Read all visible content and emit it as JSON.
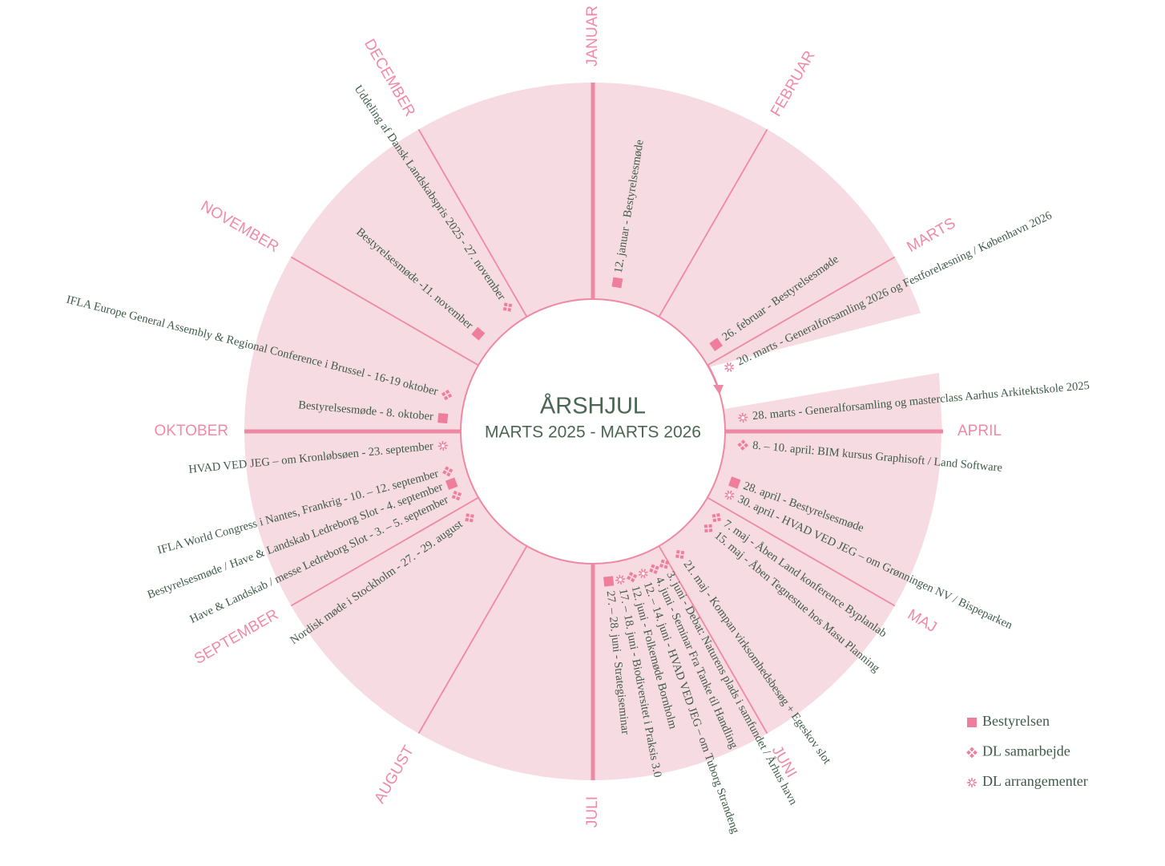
{
  "title": "ÅRSHJUL",
  "subtitle": "MARTS 2025 - MARTS 2026",
  "months": [
    "JANUAR",
    "FEBRUAR",
    "MARTS",
    "APRIL",
    "MAJ",
    "JUNI",
    "JULI",
    "AUGUST",
    "SEPTEMBER",
    "OKTOBER",
    "NOVEMBER",
    "DECEMBER"
  ],
  "events": [
    {
      "text": "12. januar - Bestyrelsesmøde",
      "icon": "square"
    },
    {
      "text": "26. februar - Bestyrelsesmøde",
      "icon": "square"
    },
    {
      "text": "20. marts - Generalforsamling 2026 og Festforelæsning / København 2026",
      "icon": "asterisk"
    },
    {
      "text": "28. marts - Generalforsamling og masterclass Aarhus Arkitektskole 2025",
      "icon": "asterisk"
    },
    {
      "text": "8. – 10. april: BIM kursus Graphisoft / Land Software",
      "icon": "diamonds"
    },
    {
      "text": "28. april - Bestyrelsesmøde",
      "icon": "square"
    },
    {
      "text": "30. april - HVAD VED JEG – om Grønningen NV / Bispeparken",
      "icon": "asterisk"
    },
    {
      "text": "7. maj - Åben Land konference Byplanlab",
      "icon": "diamonds"
    },
    {
      "text": "15. maj - Åben Tegnestue hos Masu Planning",
      "icon": "diamonds"
    },
    {
      "text": "21. maj - Kompan virksomhedsbesøg + Egeskov slot",
      "icon": "diamonds"
    },
    {
      "text": "3. juni - Debat: Naturens plads i samfundet / Århus havn",
      "icon": "diamonds"
    },
    {
      "text": "4. juni - Seminar Fra Tanke til Handling",
      "icon": "diamonds"
    },
    {
      "text": "12. – 14. juni - HVAD VED JEG – om Tuborg Strandeng",
      "icon": "asterisk"
    },
    {
      "text": "12. juni - Folkemøde Bornholm",
      "icon": "diamonds"
    },
    {
      "text": "17. – 18. juni - Biodiversitet i Praksis 3.0",
      "icon": "asterisk"
    },
    {
      "text": "27. – 28. juni - Strategiseminar",
      "icon": "square"
    },
    {
      "text": "Nordisk møde i Stockholm - 27. - 29. august",
      "icon": "diamonds"
    },
    {
      "text": "Have & Landskab / messe Ledreborg Slot - 3. – 5. september",
      "icon": "diamonds"
    },
    {
      "text": "Bestyrelsesmøde / Have & Landskab Ledreborg Slot - 4. september",
      "icon": "square"
    },
    {
      "text": "IFLA World Congress i Nantes, Frankrig - 10. – 12. september",
      "icon": "diamonds"
    },
    {
      "text": "HVAD VED JEG – om Kronløbsøen - 23. september",
      "icon": "asterisk"
    },
    {
      "text": "Bestyrelsesmøde - 8. oktober",
      "icon": "square"
    },
    {
      "text": "IFLA Europe General Assembly & Regional Conference i Brussel - 16-19 oktober",
      "icon": "diamonds"
    },
    {
      "text": "Bestyrelsesmøde -11. november",
      "icon": "square"
    },
    {
      "text": "Uddeling af Dansk Landskabspris 2025 - 27. november",
      "icon": "diamonds"
    }
  ],
  "legend": [
    {
      "label": "Bestyrelsen",
      "icon": "square"
    },
    {
      "label": "DL samarbejde",
      "icon": "diamonds"
    },
    {
      "label": "DL arrangementer",
      "icon": "asterisk"
    }
  ]
}
